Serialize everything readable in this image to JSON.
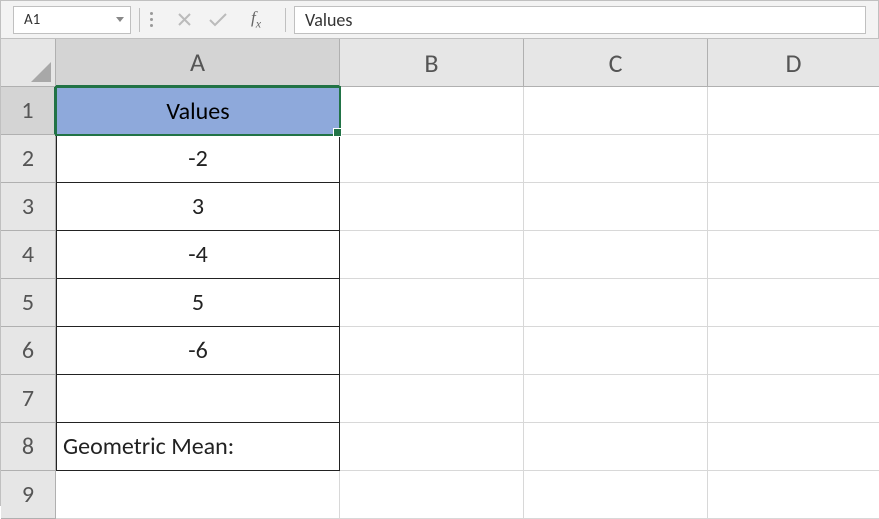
{
  "nameBox": {
    "value": "A1"
  },
  "formulaBar": {
    "value": "Values"
  },
  "columns": [
    {
      "label": "A",
      "widthClass": "col-a",
      "selected": true
    },
    {
      "label": "B",
      "widthClass": "col-b",
      "selected": false
    },
    {
      "label": "C",
      "widthClass": "col-c",
      "selected": false
    },
    {
      "label": "D",
      "widthClass": "col-d",
      "selected": false
    }
  ],
  "rowCount": 9,
  "selectedCell": {
    "row": 1,
    "col": "A"
  },
  "cells": {
    "A1": {
      "value": "Values",
      "align": "center",
      "headerFill": true,
      "bordered": true,
      "borderTop": true
    },
    "A2": {
      "value": "-2",
      "align": "center",
      "bordered": true
    },
    "A3": {
      "value": "3",
      "align": "center",
      "bordered": true
    },
    "A4": {
      "value": "-4",
      "align": "center",
      "bordered": true
    },
    "A5": {
      "value": "5",
      "align": "center",
      "bordered": true
    },
    "A6": {
      "value": "-6",
      "align": "center",
      "bordered": true
    },
    "A7": {
      "value": "",
      "align": "center",
      "bordered": true
    },
    "A8": {
      "value": "Geometric Mean:",
      "align": "left",
      "bordered": true
    }
  },
  "colors": {
    "headerFill": "#8ea9db",
    "selectionBorder": "#217346",
    "gridLight": "#d8d8d8",
    "headerBg": "#e6e6e6",
    "cellBorder": "#222222"
  }
}
